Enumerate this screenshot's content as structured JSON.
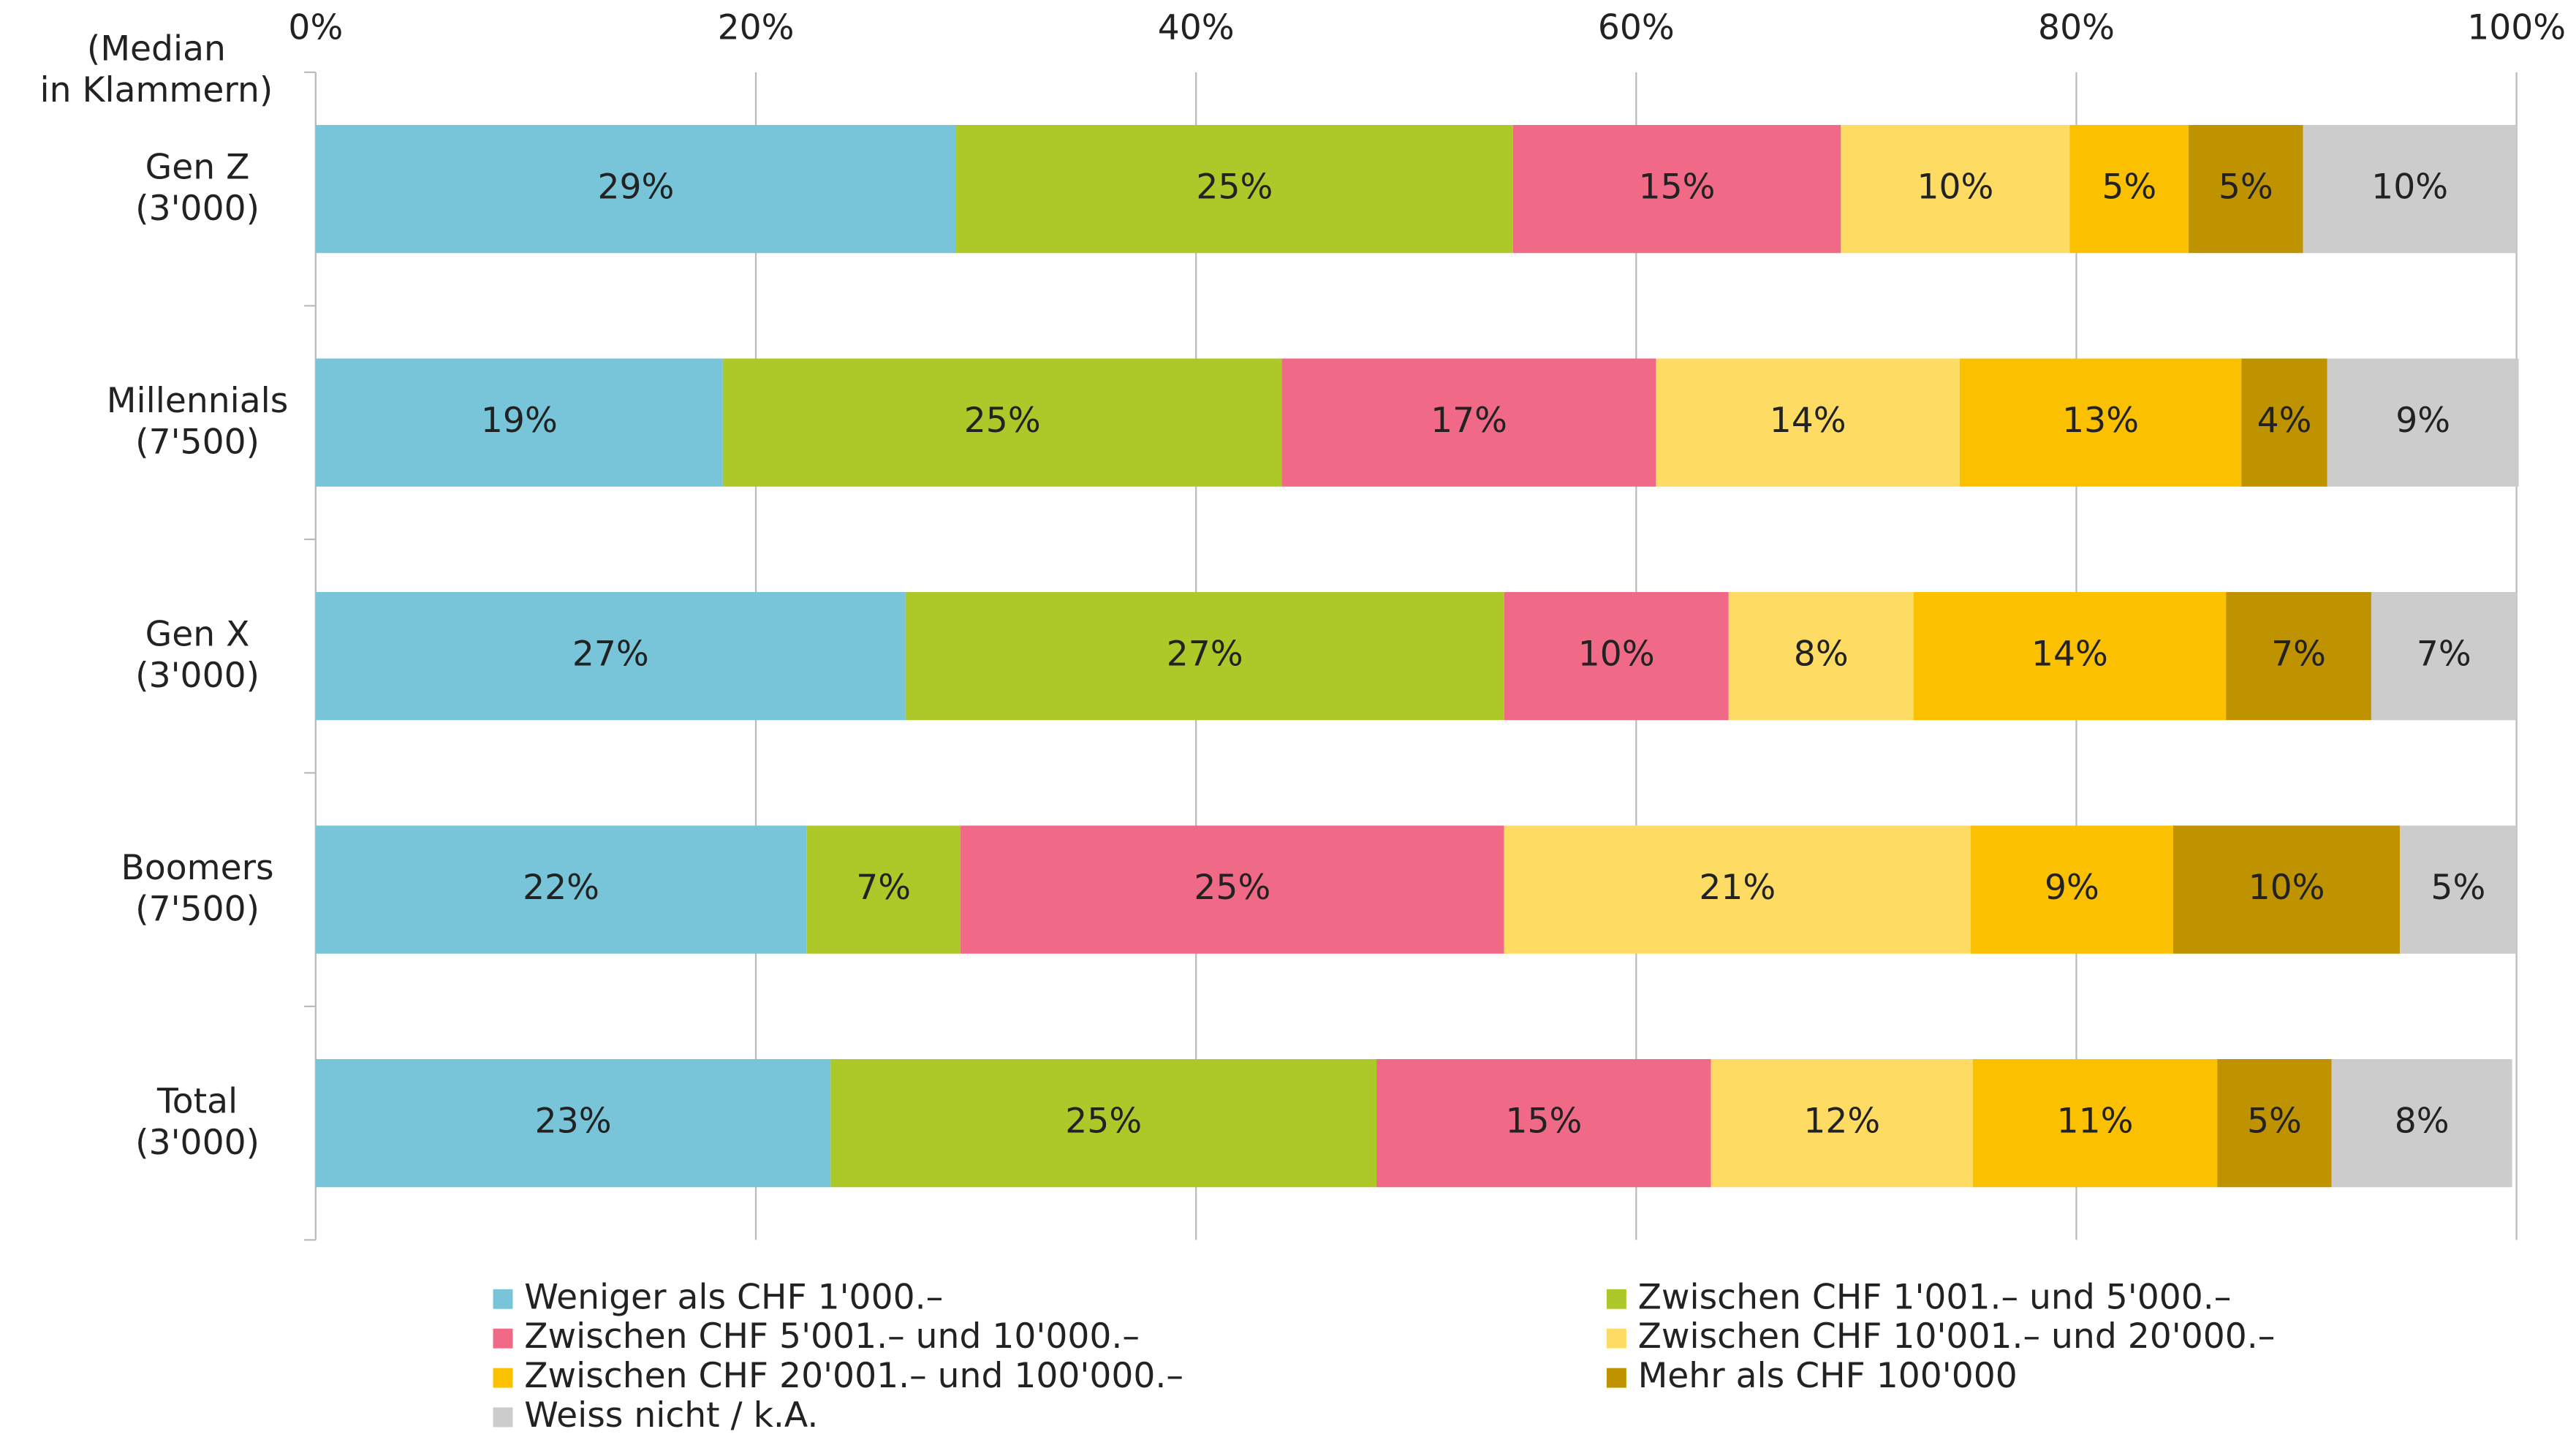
{
  "chart_data": {
    "type": "stacked_barh",
    "y_label": [
      "(Median",
      "in Klammern)"
    ],
    "categories": [
      [
        "Gen Z",
        "(3'000)"
      ],
      [
        "Millennials",
        "(7'500)"
      ],
      [
        "Gen X",
        "(3'000)"
      ],
      [
        "Boomers",
        "(7'500)"
      ],
      [
        "Total",
        "(3'000)"
      ]
    ],
    "xlim": [
      0,
      100
    ],
    "xticks": [
      {
        "value": 0,
        "label": "0%"
      },
      {
        "value": 20,
        "label": "20%"
      },
      {
        "value": 40,
        "label": "40%"
      },
      {
        "value": 60,
        "label": "60%"
      },
      {
        "value": 80,
        "label": "80%"
      },
      {
        "value": 100,
        "label": "100%"
      }
    ],
    "grid": true,
    "series": [
      {
        "name": "Weniger als CHF 1'000.–",
        "color": "#78c5d9",
        "values": [
          29.1,
          18.5,
          26.8,
          22.3,
          23.4
        ],
        "value_labels": [
          "29%",
          "19%",
          "27%",
          "22%",
          "23%"
        ]
      },
      {
        "name": "Zwischen CHF 1'001.– und 5'000.–",
        "color": "#adc929",
        "values": [
          25.3,
          25.4,
          27.2,
          7.0,
          24.8
        ],
        "value_labels": [
          "25%",
          "25%",
          "27%",
          "7%",
          "25%"
        ]
      },
      {
        "name": "Zwischen CHF 5'001.– und 10'000.–",
        "color": "#f06a87",
        "values": [
          14.9,
          17.0,
          10.2,
          24.7,
          15.2
        ],
        "value_labels": [
          "15%",
          "17%",
          "10%",
          "25%",
          "15%"
        ]
      },
      {
        "name": "Zwischen CHF 10'001.– und 20'000.–",
        "color": "#fedb63",
        "values": [
          10.4,
          13.8,
          8.4,
          21.2,
          11.9
        ],
        "value_labels": [
          "10%",
          "14%",
          "8%",
          "21%",
          "12%"
        ]
      },
      {
        "name": "Zwischen CHF 20'001.– und 100'000.–",
        "color": "#fbc100",
        "values": [
          5.4,
          12.8,
          14.2,
          9.2,
          11.1
        ],
        "value_labels": [
          "5%",
          "13%",
          "14%",
          "9%",
          "11%"
        ]
      },
      {
        "name": "Mehr als CHF 100'000",
        "color": "#bf9300",
        "values": [
          5.2,
          3.9,
          6.6,
          10.3,
          5.2
        ],
        "value_labels": [
          "5%",
          "4%",
          "7%",
          "10%",
          "5%"
        ]
      },
      {
        "name": "Weiss nicht / k.A.",
        "color": "#cccccc",
        "values": [
          9.7,
          8.7,
          6.6,
          5.3,
          8.2
        ],
        "value_labels": [
          "10%",
          "9%",
          "7%",
          "5%",
          "8%"
        ]
      }
    ]
  }
}
